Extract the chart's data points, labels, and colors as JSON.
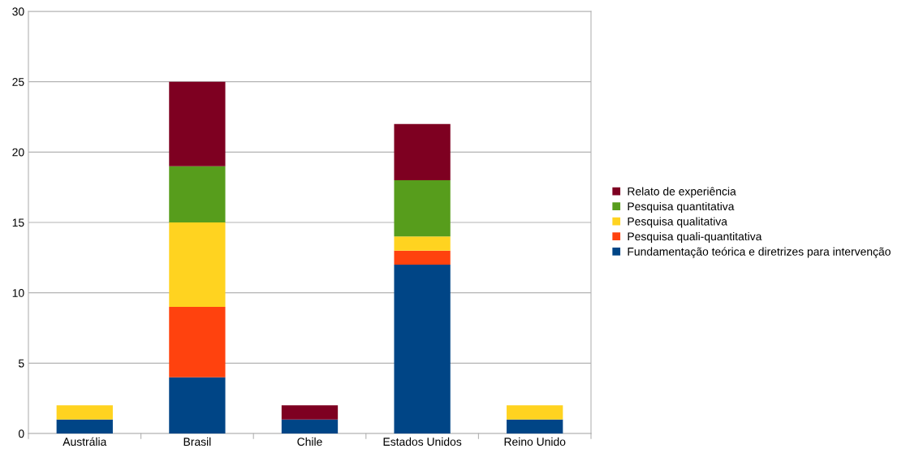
{
  "chart_data": {
    "type": "bar",
    "stacked": true,
    "categories": [
      "Austrália",
      "Brasil",
      "Chile",
      "Estados Unidos",
      "Reino Unido"
    ],
    "series": [
      {
        "name": "Fundamentação teórica e diretrizes para intervenção",
        "color": "#004586",
        "values": [
          1,
          4,
          1,
          12,
          1
        ]
      },
      {
        "name": "Pesquisa quali-quantitativa",
        "color": "#ff420e",
        "values": [
          0,
          5,
          0,
          1,
          0
        ]
      },
      {
        "name": "Pesquisa qualitativa",
        "color": "#ffd320",
        "values": [
          1,
          6,
          0,
          1,
          1
        ]
      },
      {
        "name": "Pesquisa quantitativa",
        "color": "#579d1c",
        "values": [
          0,
          4,
          0,
          4,
          0
        ]
      },
      {
        "name": "Relato de experiência",
        "color": "#7e0021",
        "values": [
          0,
          6,
          1,
          4,
          0
        ]
      }
    ],
    "ylim": [
      0,
      30
    ],
    "yticks": [
      0,
      5,
      10,
      15,
      20,
      25,
      30
    ],
    "grid": "y",
    "legend": "right"
  }
}
